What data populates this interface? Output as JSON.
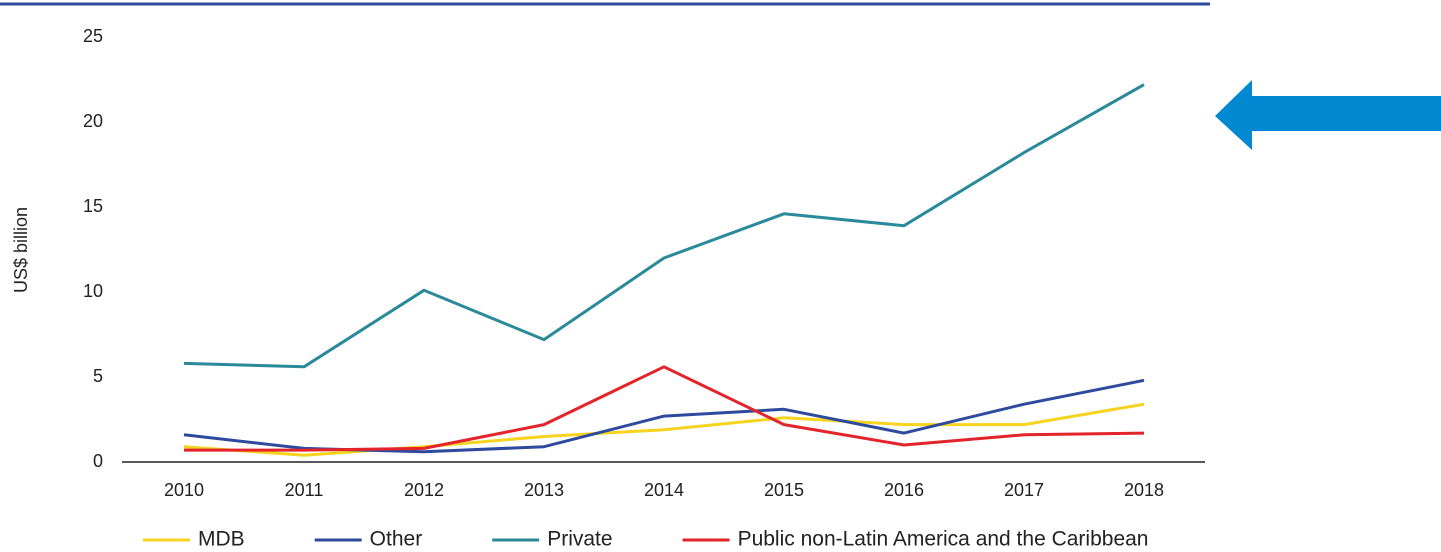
{
  "chart_data": {
    "type": "line",
    "y_label": "US$ billion",
    "categories": [
      "2010",
      "2011",
      "2012",
      "2013",
      "2014",
      "2015",
      "2016",
      "2017",
      "2018"
    ],
    "series": [
      {
        "name": "MDB",
        "color": "#f5d31f",
        "values": [
          0.9,
          0.4,
          0.9,
          1.5,
          1.9,
          2.6,
          2.2,
          2.2,
          3.4
        ]
      },
      {
        "name": "Other",
        "color": "#2e4a9e",
        "values": [
          1.6,
          0.8,
          0.6,
          0.9,
          2.7,
          3.1,
          1.7,
          3.4,
          4.8
        ]
      },
      {
        "name": "Private",
        "color": "#2a8a9a",
        "values": [
          5.8,
          5.6,
          10.1,
          7.2,
          12.0,
          14.6,
          13.9,
          18.2,
          22.2
        ]
      },
      {
        "name": "Public non-Latin America and the Caribbean",
        "color": "#e3242b",
        "values": [
          0.7,
          0.7,
          0.8,
          2.2,
          5.6,
          2.2,
          1.0,
          1.6,
          1.7
        ]
      }
    ],
    "ylim": [
      0,
      25
    ],
    "yticks": [
      0,
      5,
      10,
      15,
      20,
      25
    ],
    "grid": false,
    "legend": "bottom"
  }
}
